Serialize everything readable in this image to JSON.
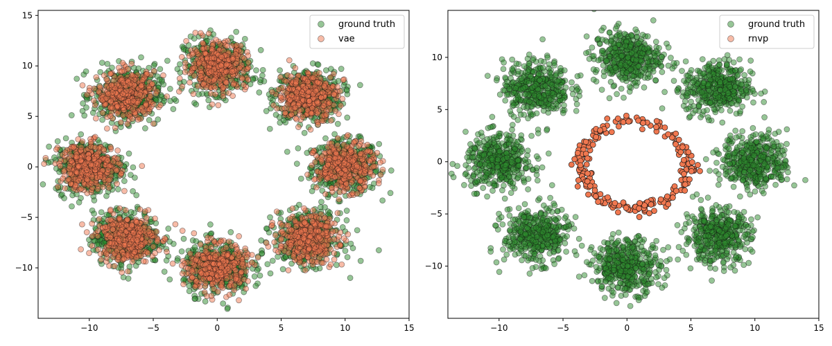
{
  "chart_data": [
    {
      "type": "scatter",
      "xlim": [
        -14,
        15
      ],
      "ylim": [
        -15,
        15.5
      ],
      "xticks": [
        -10,
        -5,
        0,
        5,
        10,
        15
      ],
      "yticks": [
        -10,
        -5,
        0,
        5,
        10,
        15
      ],
      "xtick_labels": [
        "−10",
        "−5",
        "0",
        "5",
        "10",
        "15"
      ],
      "ytick_labels": [
        "−10",
        "−5",
        "0",
        "5",
        "10",
        "15"
      ],
      "grid": false,
      "legend": "top-right",
      "series": [
        {
          "name": "ground truth",
          "color": "#2e8b2e",
          "clusters": [
            {
              "center": [
                10,
                0
              ],
              "spread": 1.3
            },
            {
              "center": [
                7.07,
                7.07
              ],
              "spread": 1.3
            },
            {
              "center": [
                0,
                10
              ],
              "spread": 1.3
            },
            {
              "center": [
                -7.07,
                7.07
              ],
              "spread": 1.3
            },
            {
              "center": [
                -10,
                0
              ],
              "spread": 1.3
            },
            {
              "center": [
                -7.07,
                -7.07
              ],
              "spread": 1.3
            },
            {
              "center": [
                0,
                -10
              ],
              "spread": 1.3
            },
            {
              "center": [
                7.07,
                -7.07
              ],
              "spread": 1.3
            }
          ]
        },
        {
          "name": "vae",
          "color": "#f07850",
          "clusters": [
            {
              "center": [
                10,
                0
              ],
              "spread": 1.15
            },
            {
              "center": [
                7.07,
                7.07
              ],
              "spread": 1.15
            },
            {
              "center": [
                0,
                10
              ],
              "spread": 1.15
            },
            {
              "center": [
                -7.07,
                7.07
              ],
              "spread": 1.15
            },
            {
              "center": [
                -10,
                0
              ],
              "spread": 1.15
            },
            {
              "center": [
                -7.07,
                -7.07
              ],
              "spread": 1.15
            },
            {
              "center": [
                0,
                -10
              ],
              "spread": 1.15
            },
            {
              "center": [
                7.07,
                -7.07
              ],
              "spread": 1.15
            }
          ]
        }
      ]
    },
    {
      "type": "scatter",
      "xlim": [
        -14,
        15
      ],
      "ylim": [
        -15,
        14.5
      ],
      "xticks": [
        -10,
        -5,
        0,
        5,
        10,
        15
      ],
      "yticks": [
        -10,
        -5,
        0,
        5,
        10
      ],
      "xtick_labels": [
        "−10",
        "−5",
        "0",
        "5",
        "10",
        "15"
      ],
      "ytick_labels": [
        "−10",
        "−5",
        "0",
        "5",
        "10"
      ],
      "grid": false,
      "legend": "top-right",
      "series": [
        {
          "name": "ground truth",
          "color": "#2e8b2e",
          "clusters": [
            {
              "center": [
                10,
                0
              ],
              "spread": 1.3
            },
            {
              "center": [
                7.07,
                7.07
              ],
              "spread": 1.3
            },
            {
              "center": [
                0,
                10
              ],
              "spread": 1.3
            },
            {
              "center": [
                -7.07,
                7.07
              ],
              "spread": 1.3
            },
            {
              "center": [
                -10,
                0
              ],
              "spread": 1.3
            },
            {
              "center": [
                -7.07,
                -7.07
              ],
              "spread": 1.3
            },
            {
              "center": [
                0,
                -10
              ],
              "spread": 1.3
            },
            {
              "center": [
                7.07,
                -7.07
              ],
              "spread": 1.3
            }
          ]
        },
        {
          "name": "rnvp",
          "color": "#f07850",
          "ring": {
            "center": [
              0.6,
              -0.3
            ],
            "rx": 4.2,
            "ry": 4.2,
            "noise": 0.35
          }
        }
      ]
    }
  ]
}
